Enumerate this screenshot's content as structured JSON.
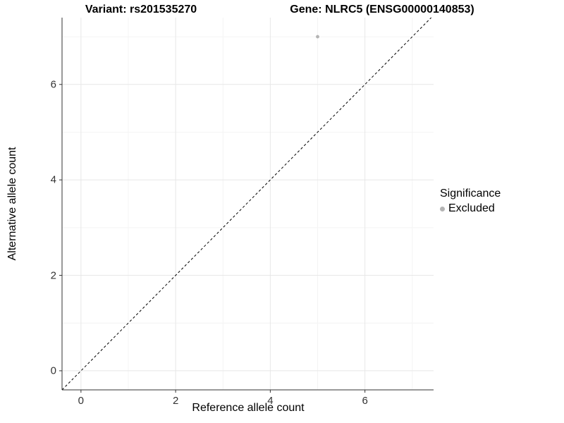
{
  "titles": {
    "variant": "Variant: rs201535270",
    "gene": "Gene: NLRC5 (ENSG00000140853)"
  },
  "chart_data": {
    "type": "scatter",
    "title": "Variant: rs201535270   Gene: NLRC5 (ENSG00000140853)",
    "xlabel": "Reference allele count",
    "ylabel": "Alternative allele count",
    "x_range": [
      -0.4,
      7.45
    ],
    "y_range": [
      -0.4,
      7.4
    ],
    "x_ticks": [
      0,
      2,
      4,
      6
    ],
    "y_ticks": [
      0,
      2,
      4,
      6
    ],
    "minor_grid_x": [
      1,
      3,
      5,
      7
    ],
    "minor_grid_y": [
      1,
      3,
      5,
      7
    ],
    "grid": "major+minor",
    "background_color": "#ffffff",
    "axis_line_color": "#333333",
    "series": [
      {
        "name": "Excluded",
        "color": "#b4b4b4",
        "points": [
          {
            "x": 5,
            "y": 7
          }
        ]
      }
    ],
    "reference_line": {
      "type": "identity",
      "slope": 1,
      "intercept": 0,
      "style": "dashed",
      "color": "#000000"
    },
    "legend": {
      "title": "Significance",
      "position": "right",
      "entries": [
        {
          "label": "Excluded",
          "color": "#b4b4b4"
        }
      ]
    }
  }
}
